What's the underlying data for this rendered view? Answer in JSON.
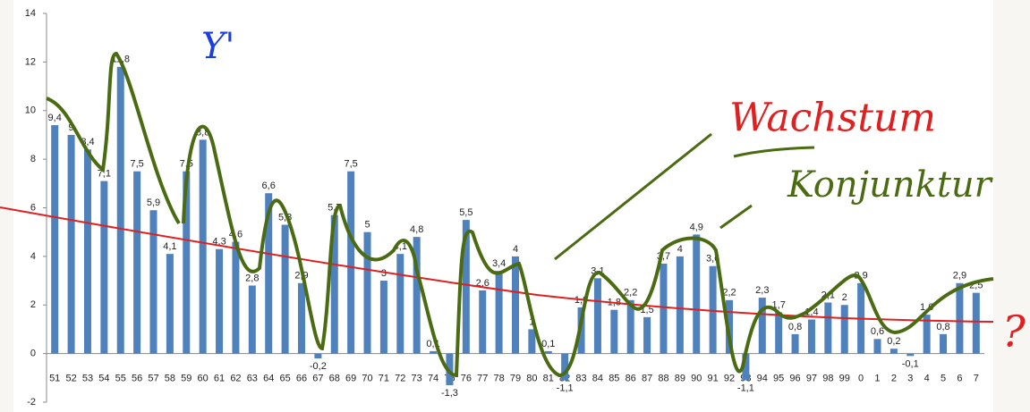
{
  "chart_data": {
    "type": "bar",
    "categories": [
      "51",
      "52",
      "53",
      "54",
      "55",
      "56",
      "57",
      "58",
      "59",
      "60",
      "61",
      "62",
      "63",
      "64",
      "65",
      "66",
      "67",
      "68",
      "69",
      "70",
      "71",
      "72",
      "73",
      "74",
      "75",
      "76",
      "77",
      "78",
      "79",
      "80",
      "81",
      "82",
      "83",
      "84",
      "85",
      "86",
      "87",
      "88",
      "89",
      "90",
      "91",
      "92",
      "93",
      "94",
      "95",
      "96",
      "97",
      "98",
      "99",
      "0",
      "1",
      "2",
      "3",
      "4",
      "5",
      "6",
      "7"
    ],
    "values": [
      9.4,
      9,
      8.4,
      7.1,
      11.8,
      7.5,
      5.9,
      4.1,
      7.5,
      8.8,
      4.3,
      4.6,
      2.8,
      6.6,
      5.3,
      2.9,
      -0.2,
      5.7,
      7.5,
      5,
      3,
      4.1,
      4.8,
      0.1,
      -1.3,
      5.5,
      2.6,
      3.4,
      4,
      1,
      0.1,
      -1.1,
      1.9,
      3.1,
      1.8,
      2.2,
      1.5,
      3.7,
      4,
      4.9,
      3.6,
      2.2,
      -1.1,
      2.3,
      1.7,
      0.8,
      1.4,
      2.1,
      2,
      2.9,
      0.6,
      0.2,
      -0.1,
      1.6,
      0.8,
      2.9,
      2.5
    ],
    "value_labels": [
      "9,4",
      "9",
      "8,4",
      "7,1",
      "11,8",
      "7,5",
      "5,9",
      "4,1",
      "7,5",
      "8,8",
      "4,3",
      "4,6",
      "2,8",
      "6,6",
      "5,3",
      "2,9",
      "-0,2",
      "5,7",
      "7,5",
      "5",
      "3",
      "4,1",
      "4,8",
      "0,1",
      "-1,3",
      "5,5",
      "2,6",
      "3,4",
      "4",
      "1",
      "0,1",
      "-1,1",
      "1,9",
      "3,1",
      "1,8",
      "2,2",
      "1,5",
      "3,7",
      "4",
      "4,9",
      "3,6",
      "2,2",
      "-1,1",
      "2,3",
      "1,7",
      "0,8",
      "1,4",
      "2,1",
      "2",
      "2,9",
      "0,6",
      "0,2",
      "-0,1",
      "1,6",
      "0,8",
      "2,9",
      "2,5"
    ],
    "color": "#4f81bd",
    "ylim": [
      -2,
      14
    ],
    "yticks": [
      -2,
      0,
      2,
      4,
      6,
      8,
      10,
      12,
      14
    ],
    "grid": false,
    "annotations": [
      "Y'",
      "Wachstum",
      "Konjunktur",
      "?"
    ]
  }
}
